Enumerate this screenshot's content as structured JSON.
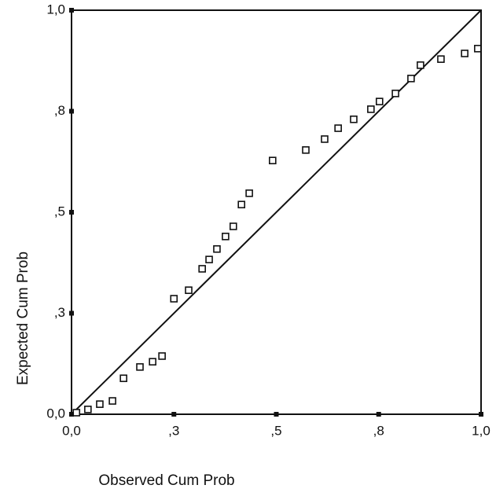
{
  "chart_data": {
    "type": "scatter",
    "x_label": "Observed Cum Prob",
    "y_label": "Expected Cum Prob",
    "x": [
      0.012,
      0.04,
      0.069,
      0.1,
      0.127,
      0.167,
      0.198,
      0.221,
      0.25,
      0.286,
      0.319,
      0.336,
      0.355,
      0.376,
      0.395,
      0.415,
      0.434,
      0.491,
      0.572,
      0.618,
      0.651,
      0.689,
      0.731,
      0.752,
      0.791,
      0.829,
      0.852,
      0.902,
      0.96,
      0.992
    ],
    "values": [
      0.004,
      0.012,
      0.025,
      0.033,
      0.089,
      0.117,
      0.13,
      0.144,
      0.286,
      0.307,
      0.36,
      0.383,
      0.409,
      0.44,
      0.465,
      0.519,
      0.547,
      0.628,
      0.654,
      0.681,
      0.708,
      0.73,
      0.755,
      0.774,
      0.794,
      0.831,
      0.864,
      0.879,
      0.893,
      0.905
    ],
    "color": "#111111",
    "xlim": [
      0,
      1
    ],
    "ylim": [
      0,
      1
    ],
    "xticks": [
      {
        "value": 0,
        "label": "0,0"
      },
      {
        "value": 0.25,
        "label": ",3"
      },
      {
        "value": 0.5,
        "label": ",5"
      },
      {
        "value": 0.75,
        "label": ",8"
      },
      {
        "value": 1,
        "label": "1,0"
      }
    ],
    "yticks": [
      {
        "value": 0,
        "label": "0,0"
      },
      {
        "value": 0.25,
        "label": ",3"
      },
      {
        "value": 0.5,
        "label": ",5"
      },
      {
        "value": 0.75,
        "label": ",8"
      },
      {
        "value": 1,
        "label": "1,0"
      }
    ]
  }
}
